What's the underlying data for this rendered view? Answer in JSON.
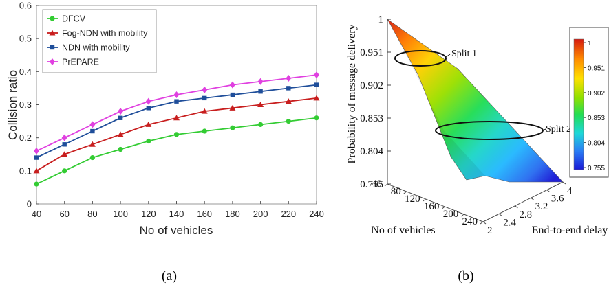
{
  "chart_data": [
    {
      "type": "line",
      "panel_caption": "(a)",
      "xlabel": "No of vehicles",
      "ylabel": "Collision ratio",
      "x": [
        40,
        60,
        80,
        100,
        120,
        140,
        160,
        180,
        200,
        220,
        240
      ],
      "x_ticks": [
        "40",
        "60",
        "80",
        "100",
        "120",
        "140",
        "160",
        "180",
        "200",
        "220",
        "240"
      ],
      "y_ticks": [
        "0",
        "0.1",
        "0.2",
        "0.3",
        "0.4",
        "0.5",
        "0.6"
      ],
      "xlim": [
        40,
        240
      ],
      "ylim": [
        0,
        0.6
      ],
      "legend_position": "top-left",
      "series": [
        {
          "name": "DFCV",
          "color": "#33cc33",
          "marker": "circle",
          "values": [
            0.06,
            0.1,
            0.14,
            0.165,
            0.19,
            0.21,
            0.22,
            0.23,
            0.24,
            0.25,
            0.26
          ]
        },
        {
          "name": "Fog-NDN with mobility",
          "color": "#c81e1e",
          "marker": "triangle",
          "values": [
            0.1,
            0.15,
            0.18,
            0.21,
            0.24,
            0.26,
            0.28,
            0.29,
            0.3,
            0.31,
            0.32
          ]
        },
        {
          "name": "NDN with mobility",
          "color": "#1f4e9a",
          "marker": "square",
          "values": [
            0.14,
            0.18,
            0.22,
            0.26,
            0.29,
            0.31,
            0.32,
            0.33,
            0.34,
            0.35,
            0.36
          ]
        },
        {
          "name": "PrEPARE",
          "color": "#e040e0",
          "marker": "diamond",
          "values": [
            0.16,
            0.2,
            0.24,
            0.28,
            0.31,
            0.33,
            0.345,
            0.36,
            0.37,
            0.38,
            0.39
          ]
        }
      ]
    },
    {
      "type": "surface",
      "panel_caption": "(b)",
      "xlabel": "No of vehicles",
      "ylabel": "End-to-end delay",
      "zlabel": "Probability of message delivery",
      "x_ticks": [
        "40",
        "80",
        "120",
        "160",
        "200",
        "240"
      ],
      "y_ticks": [
        "2",
        "2.4",
        "2.8",
        "3.2",
        "3.6",
        "4"
      ],
      "z_ticks": [
        "0.755",
        "0.804",
        "0.853",
        "0.902",
        "0.951",
        "1"
      ],
      "colorbar_ticks": [
        "0.755",
        "0.804",
        "0.853",
        "0.902",
        "0.951",
        "1"
      ],
      "zlim": [
        0.755,
        1
      ],
      "annotations": [
        "Split 1",
        "Split 2"
      ]
    }
  ]
}
